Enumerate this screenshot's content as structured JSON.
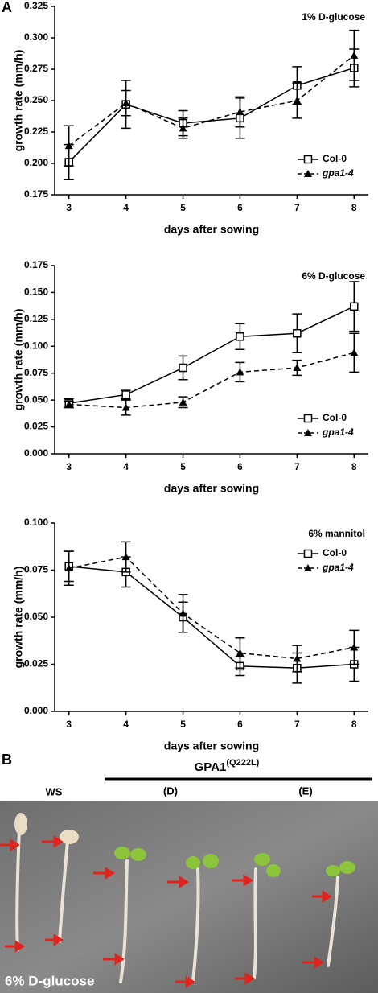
{
  "panel_labels": [
    "A",
    "B"
  ],
  "photo": {
    "group_label": "GPA1",
    "group_superscript": "(Q222L)",
    "lanes": [
      "WS",
      "(D)",
      "(E)"
    ],
    "condition": "6% D-glucose"
  },
  "chart_data": [
    {
      "type": "line",
      "annotation": "1% D-glucose",
      "x_label": "days after sowing",
      "y_label": "growth rate (mm/h)",
      "x": [
        3,
        4,
        5,
        6,
        7,
        8
      ],
      "xlim": [
        2.75,
        8.25
      ],
      "xticks": [
        3,
        4,
        5,
        6,
        7,
        8
      ],
      "ylim": [
        0.175,
        0.325
      ],
      "yticks": [
        0.175,
        {
          "value": 0.2,
          "label": "0.200"
        },
        0.225,
        {
          "value": 0.25,
          "label": "0.250"
        },
        0.275,
        {
          "value": 0.3,
          "label": "0.300"
        },
        0.325
      ],
      "legend": "lower right",
      "series": [
        {
          "name": "Col-0",
          "color": "#000000",
          "dashed": false,
          "marker": "open-square",
          "values": [
            0.201,
            0.247,
            0.232,
            0.236,
            0.262,
            0.276
          ],
          "errors": [
            0.014,
            0.019,
            0.01,
            0.016,
            0.015,
            0.015
          ]
        },
        {
          "name": "gpa1-4",
          "color": "#000000",
          "dashed": true,
          "marker": "filled-triangle",
          "values": [
            0.214,
            0.248,
            0.228,
            0.241,
            0.25,
            0.286
          ],
          "errors": [
            0.016,
            0.01,
            0.008,
            0.012,
            0.014,
            0.02
          ]
        }
      ]
    },
    {
      "type": "line",
      "annotation": "6% D-glucose",
      "x_label": "days after sowing",
      "y_label": "growth rate (mm/h)",
      "x": [
        3,
        4,
        5,
        6,
        7,
        8
      ],
      "xlim": [
        2.75,
        8.25
      ],
      "xticks": [
        3,
        4,
        5,
        6,
        7,
        8
      ],
      "ylim": [
        0,
        0.175
      ],
      "yticks": [
        {
          "value": 0,
          "label": "0.000"
        },
        0.025,
        {
          "value": 0.05,
          "label": "0.050"
        },
        0.075,
        {
          "value": 0.1,
          "label": "0.100"
        },
        0.125,
        {
          "value": 0.15,
          "label": "0.150"
        },
        0.175
      ],
      "legend": "lower right",
      "series": [
        {
          "name": "Col-0",
          "color": "#000000",
          "dashed": false,
          "marker": "open-square",
          "values": [
            0.047,
            0.055,
            0.08,
            0.109,
            0.112,
            0.137
          ],
          "errors": [
            0.004,
            0.004,
            0.011,
            0.012,
            0.018,
            0.023
          ]
        },
        {
          "name": "gpa1-4",
          "color": "#000000",
          "dashed": true,
          "marker": "filled-triangle",
          "values": [
            0.046,
            0.043,
            0.048,
            0.076,
            0.08,
            0.094
          ],
          "errors": [
            0.003,
            0.007,
            0.005,
            0.009,
            0.007,
            0.018
          ]
        }
      ]
    },
    {
      "type": "line",
      "annotation": "6% mannitol",
      "x_label": "days after sowing",
      "y_label": "growth rate (mm/h)",
      "x": [
        3,
        4,
        5,
        6,
        7,
        8
      ],
      "xlim": [
        2.75,
        8.25
      ],
      "xticks": [
        3,
        4,
        5,
        6,
        7,
        8
      ],
      "ylim": [
        0,
        0.1
      ],
      "yticks": [
        {
          "value": 0,
          "label": "0.000"
        },
        0.025,
        {
          "value": 0.05,
          "label": "0.050"
        },
        0.075,
        {
          "value": 0.1,
          "label": "0.100"
        }
      ],
      "legend": "upper right",
      "series": [
        {
          "name": "Col-0",
          "color": "#000000",
          "dashed": false,
          "marker": "open-square",
          "values": [
            0.077,
            0.074,
            0.05,
            0.024,
            0.023,
            0.025
          ],
          "errors": [
            0.008,
            0.008,
            0.008,
            0.005,
            0.008,
            0.009
          ]
        },
        {
          "name": "gpa1-4",
          "color": "#000000",
          "dashed": true,
          "marker": "filled-triangle",
          "values": [
            0.076,
            0.082,
            0.052,
            0.031,
            0.028,
            0.034
          ],
          "errors": [
            0.009,
            0.008,
            0.01,
            0.008,
            0.007,
            0.009
          ]
        }
      ]
    }
  ]
}
